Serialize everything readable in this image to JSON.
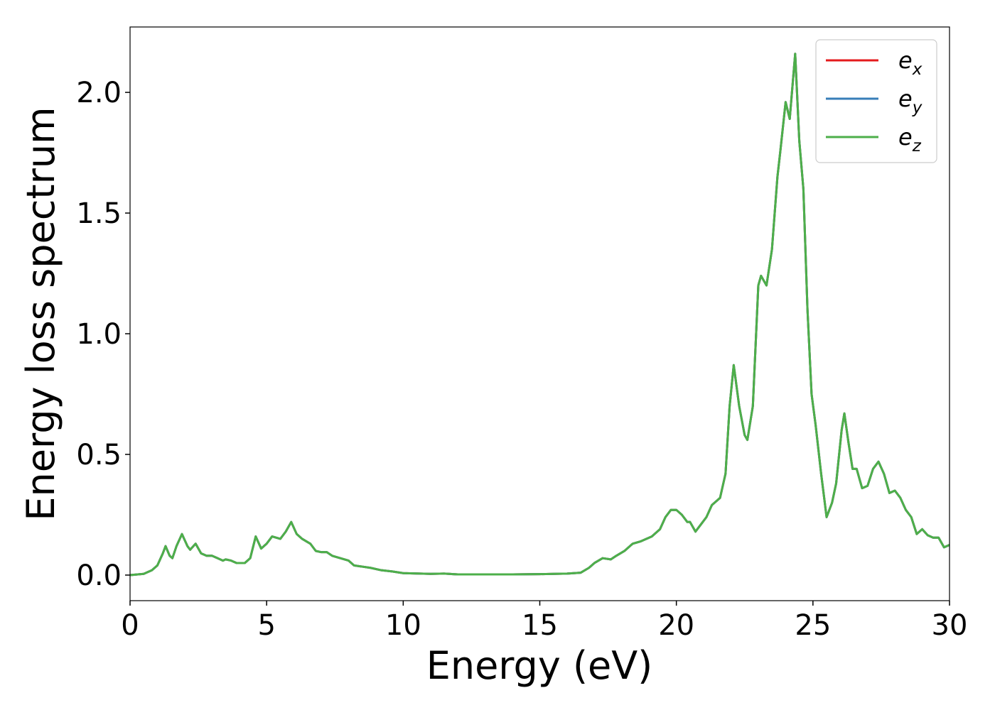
{
  "chart_data": {
    "type": "line",
    "x_label": "Energy (eV)",
    "y_label": "Energy loss spectrum",
    "x": [
      0,
      0.5,
      0.8,
      1.0,
      1.2,
      1.3,
      1.45,
      1.55,
      1.7,
      1.9,
      2.1,
      2.2,
      2.4,
      2.6,
      2.8,
      3.0,
      3.2,
      3.4,
      3.5,
      3.7,
      3.9,
      4.2,
      4.4,
      4.6,
      4.8,
      5.0,
      5.2,
      5.5,
      5.7,
      5.9,
      6.1,
      6.3,
      6.6,
      6.8,
      7.0,
      7.2,
      7.4,
      7.7,
      8.0,
      8.2,
      8.5,
      8.8,
      9.2,
      9.6,
      10,
      11,
      11.5,
      12,
      13,
      14,
      15,
      16,
      16.5,
      16.8,
      17.0,
      17.3,
      17.6,
      17.8,
      18.1,
      18.4,
      18.7,
      18.9,
      19.1,
      19.4,
      19.6,
      19.8,
      20.0,
      20.2,
      20.4,
      20.5,
      20.7,
      20.9,
      21.1,
      21.3,
      21.6,
      21.8,
      21.95,
      22.1,
      22.3,
      22.5,
      22.6,
      22.8,
      23.0,
      23.1,
      23.3,
      23.5,
      23.7,
      23.8,
      24.0,
      24.15,
      24.35,
      24.5,
      24.65,
      24.8,
      24.95,
      25.1,
      25.3,
      25.5,
      25.7,
      25.85,
      26.05,
      26.15,
      26.3,
      26.45,
      26.6,
      26.8,
      27.0,
      27.2,
      27.4,
      27.6,
      27.8,
      28.0,
      28.2,
      28.4,
      28.6,
      28.8,
      29.0,
      29.2,
      29.4,
      29.6,
      29.8,
      30.0
    ],
    "series": [
      {
        "name": "e_x",
        "color": "#e41a1c",
        "values": [
          0,
          0.005,
          0.02,
          0.04,
          0.09,
          0.12,
          0.08,
          0.07,
          0.12,
          0.17,
          0.12,
          0.105,
          0.13,
          0.09,
          0.08,
          0.08,
          0.07,
          0.06,
          0.065,
          0.06,
          0.05,
          0.05,
          0.07,
          0.16,
          0.11,
          0.13,
          0.16,
          0.15,
          0.18,
          0.22,
          0.17,
          0.15,
          0.13,
          0.1,
          0.095,
          0.095,
          0.08,
          0.07,
          0.06,
          0.04,
          0.035,
          0.03,
          0.02,
          0.015,
          0.008,
          0.005,
          0.006,
          0.003,
          0.003,
          0.003,
          0.004,
          0.006,
          0.01,
          0.03,
          0.05,
          0.07,
          0.065,
          0.08,
          0.1,
          0.13,
          0.14,
          0.15,
          0.16,
          0.19,
          0.24,
          0.27,
          0.27,
          0.25,
          0.22,
          0.22,
          0.18,
          0.21,
          0.24,
          0.29,
          0.32,
          0.42,
          0.7,
          0.87,
          0.7,
          0.58,
          0.56,
          0.7,
          1.2,
          1.24,
          1.2,
          1.35,
          1.65,
          1.75,
          1.96,
          1.89,
          2.16,
          1.8,
          1.6,
          1.1,
          0.75,
          0.62,
          0.42,
          0.24,
          0.3,
          0.38,
          0.6,
          0.67,
          0.55,
          0.44,
          0.44,
          0.36,
          0.37,
          0.44,
          0.47,
          0.42,
          0.34,
          0.35,
          0.32,
          0.27,
          0.24,
          0.17,
          0.19,
          0.165,
          0.155,
          0.155,
          0.115,
          0.125
        ]
      },
      {
        "name": "e_y",
        "color": "#377eb8",
        "values": [
          0,
          0.005,
          0.02,
          0.04,
          0.09,
          0.12,
          0.08,
          0.07,
          0.12,
          0.17,
          0.12,
          0.105,
          0.13,
          0.09,
          0.08,
          0.08,
          0.07,
          0.06,
          0.065,
          0.06,
          0.05,
          0.05,
          0.07,
          0.16,
          0.11,
          0.13,
          0.16,
          0.15,
          0.18,
          0.22,
          0.17,
          0.15,
          0.13,
          0.1,
          0.095,
          0.095,
          0.08,
          0.07,
          0.06,
          0.04,
          0.035,
          0.03,
          0.02,
          0.015,
          0.008,
          0.005,
          0.006,
          0.003,
          0.003,
          0.003,
          0.004,
          0.006,
          0.01,
          0.03,
          0.05,
          0.07,
          0.065,
          0.08,
          0.1,
          0.13,
          0.14,
          0.15,
          0.16,
          0.19,
          0.24,
          0.27,
          0.27,
          0.25,
          0.22,
          0.22,
          0.18,
          0.21,
          0.24,
          0.29,
          0.32,
          0.42,
          0.7,
          0.87,
          0.7,
          0.58,
          0.56,
          0.7,
          1.2,
          1.24,
          1.2,
          1.35,
          1.65,
          1.75,
          1.96,
          1.89,
          2.16,
          1.8,
          1.6,
          1.1,
          0.75,
          0.62,
          0.42,
          0.24,
          0.3,
          0.38,
          0.6,
          0.67,
          0.55,
          0.44,
          0.44,
          0.36,
          0.37,
          0.44,
          0.47,
          0.42,
          0.34,
          0.35,
          0.32,
          0.27,
          0.24,
          0.17,
          0.19,
          0.165,
          0.155,
          0.155,
          0.115,
          0.125
        ]
      },
      {
        "name": "e_z",
        "color": "#4daf4a",
        "values": [
          0,
          0.005,
          0.02,
          0.04,
          0.09,
          0.12,
          0.08,
          0.07,
          0.12,
          0.17,
          0.12,
          0.105,
          0.13,
          0.09,
          0.08,
          0.08,
          0.07,
          0.06,
          0.065,
          0.06,
          0.05,
          0.05,
          0.07,
          0.16,
          0.11,
          0.13,
          0.16,
          0.15,
          0.18,
          0.22,
          0.17,
          0.15,
          0.13,
          0.1,
          0.095,
          0.095,
          0.08,
          0.07,
          0.06,
          0.04,
          0.035,
          0.03,
          0.02,
          0.015,
          0.008,
          0.005,
          0.006,
          0.003,
          0.003,
          0.003,
          0.004,
          0.006,
          0.01,
          0.03,
          0.05,
          0.07,
          0.065,
          0.08,
          0.1,
          0.13,
          0.14,
          0.15,
          0.16,
          0.19,
          0.24,
          0.27,
          0.27,
          0.25,
          0.22,
          0.22,
          0.18,
          0.21,
          0.24,
          0.29,
          0.32,
          0.42,
          0.7,
          0.87,
          0.7,
          0.58,
          0.56,
          0.7,
          1.2,
          1.24,
          1.2,
          1.35,
          1.65,
          1.75,
          1.96,
          1.89,
          2.16,
          1.8,
          1.6,
          1.1,
          0.75,
          0.62,
          0.42,
          0.24,
          0.3,
          0.38,
          0.6,
          0.67,
          0.55,
          0.44,
          0.44,
          0.36,
          0.37,
          0.44,
          0.47,
          0.42,
          0.34,
          0.35,
          0.32,
          0.27,
          0.24,
          0.17,
          0.19,
          0.165,
          0.155,
          0.155,
          0.115,
          0.125
        ]
      }
    ],
    "xlim": [
      0,
      30
    ],
    "xticks": [
      0,
      5,
      10,
      15,
      20,
      25,
      30
    ],
    "ylim": [
      -0.106,
      2.271
    ],
    "yticks": [
      {
        "value": 0,
        "label": "0.0"
      },
      0.5,
      {
        "value": 1,
        "label": "1.0"
      },
      1.5,
      {
        "value": 2,
        "label": "2.0"
      }
    ],
    "grid": false,
    "legend": "upper right"
  }
}
